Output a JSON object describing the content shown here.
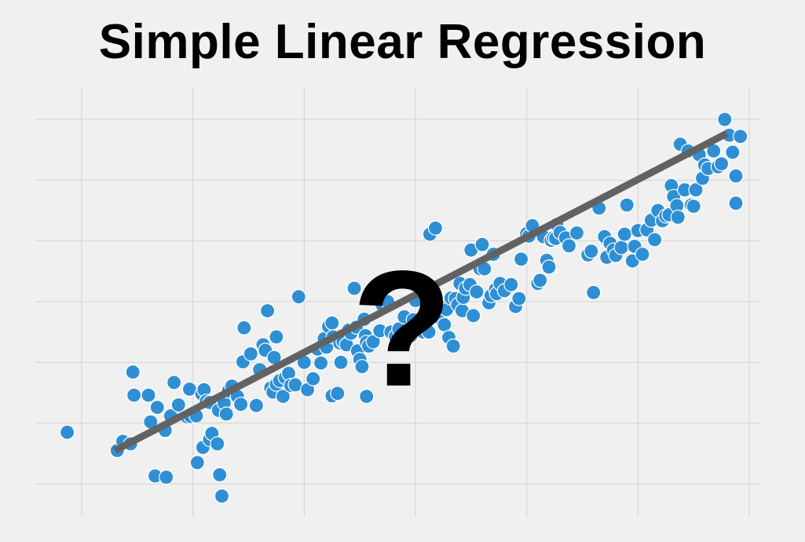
{
  "chart_data": {
    "type": "scatter",
    "title": "Simple Linear Regression",
    "xlabel": "",
    "ylabel": "",
    "xlim": [
      -0.4,
      5.95
    ],
    "ylim": [
      -0.25,
      6.4
    ],
    "grid": true,
    "tick_labels_shown": false,
    "x_gridlines": [
      0,
      1,
      2,
      3,
      4,
      5,
      6
    ],
    "y_gridlines": [
      0,
      1,
      2,
      3,
      4,
      5,
      6
    ],
    "colors": {
      "points": "#2e8fd4",
      "point_outline": "#ffffff",
      "regression_line": "#626262",
      "grid": "#d2d2d2",
      "background": "#f0f0f0",
      "annotation": "#000000"
    },
    "regression_line": {
      "start": [
        0.3,
        0.55
      ],
      "end": [
        5.8,
        5.77
      ]
    },
    "annotation": {
      "text": "?",
      "x": 2.88,
      "y": 2.55
    },
    "points": [
      [
        -0.13,
        0.85
      ],
      [
        0.32,
        0.55
      ],
      [
        0.37,
        0.7
      ],
      [
        0.44,
        0.66
      ],
      [
        0.46,
        1.84
      ],
      [
        0.47,
        1.46
      ],
      [
        0.6,
        1.46
      ],
      [
        0.62,
        1.02
      ],
      [
        0.66,
        0.13
      ],
      [
        0.68,
        1.26
      ],
      [
        0.75,
        0.88
      ],
      [
        0.76,
        0.11
      ],
      [
        0.8,
        1.12
      ],
      [
        0.83,
        1.67
      ],
      [
        0.87,
        1.3
      ],
      [
        0.95,
        1.1
      ],
      [
        0.97,
        1.56
      ],
      [
        0.98,
        1.11
      ],
      [
        1.03,
        1.12
      ],
      [
        1.04,
        0.35
      ],
      [
        1.08,
        1.48
      ],
      [
        1.09,
        0.6
      ],
      [
        1.1,
        1.55
      ],
      [
        1.12,
        1.36
      ],
      [
        1.15,
        1.34
      ],
      [
        1.15,
        0.73
      ],
      [
        1.17,
        0.83
      ],
      [
        1.22,
        0.66
      ],
      [
        1.23,
        1.21
      ],
      [
        1.24,
        0.15
      ],
      [
        1.26,
        -0.2
      ],
      [
        1.28,
        1.33
      ],
      [
        1.3,
        1.15
      ],
      [
        1.32,
        1.53
      ],
      [
        1.35,
        1.61
      ],
      [
        1.4,
        1.44
      ],
      [
        1.43,
        1.31
      ],
      [
        1.45,
        2.01
      ],
      [
        1.46,
        2.57
      ],
      [
        1.52,
        2.14
      ],
      [
        1.57,
        1.29
      ],
      [
        1.6,
        1.88
      ],
      [
        1.63,
        2.29
      ],
      [
        1.65,
        2.2
      ],
      [
        1.67,
        2.85
      ],
      [
        1.7,
        1.58
      ],
      [
        1.72,
        1.51
      ],
      [
        1.73,
        2.08
      ],
      [
        1.75,
        1.64
      ],
      [
        1.75,
        2.42
      ],
      [
        1.78,
        1.7
      ],
      [
        1.81,
        1.44
      ],
      [
        1.83,
        1.75
      ],
      [
        1.86,
        1.82
      ],
      [
        1.88,
        1.62
      ],
      [
        1.92,
        1.63
      ],
      [
        1.95,
        3.08
      ],
      [
        2.0,
        2.0
      ],
      [
        2.03,
        1.55
      ],
      [
        2.08,
        1.73
      ],
      [
        2.12,
        2.22
      ],
      [
        2.15,
        1.99
      ],
      [
        2.18,
        2.39
      ],
      [
        2.2,
        2.25
      ],
      [
        2.22,
        2.59
      ],
      [
        2.25,
        2.65
      ],
      [
        2.25,
        1.45
      ],
      [
        2.26,
        2.42
      ],
      [
        2.3,
        1.49
      ],
      [
        2.32,
        2.32
      ],
      [
        2.33,
        2.0
      ],
      [
        2.35,
        2.34
      ],
      [
        2.38,
        2.29
      ],
      [
        2.4,
        2.53
      ],
      [
        2.42,
        2.48
      ],
      [
        2.45,
        3.22
      ],
      [
        2.47,
        2.58
      ],
      [
        2.48,
        2.19
      ],
      [
        2.5,
        2.05
      ],
      [
        2.52,
        1.93
      ],
      [
        2.54,
        2.71
      ],
      [
        2.55,
        2.44
      ],
      [
        2.56,
        2.33
      ],
      [
        2.56,
        1.44
      ],
      [
        2.58,
        2.27
      ],
      [
        2.62,
        2.34
      ],
      [
        2.68,
        2.52
      ],
      [
        2.7,
        2.95
      ],
      [
        2.75,
        3.0
      ],
      [
        2.78,
        2.5
      ],
      [
        2.82,
        2.43
      ],
      [
        2.85,
        2.55
      ],
      [
        2.9,
        2.75
      ],
      [
        2.96,
        2.44
      ],
      [
        2.98,
        2.7
      ],
      [
        3.0,
        3.02
      ],
      [
        3.05,
        2.66
      ],
      [
        3.07,
        2.5
      ],
      [
        3.12,
        2.5
      ],
      [
        3.13,
        4.11
      ],
      [
        3.18,
        4.21
      ],
      [
        3.2,
        2.75
      ],
      [
        3.24,
        2.9
      ],
      [
        3.26,
        2.62
      ],
      [
        3.28,
        2.87
      ],
      [
        3.3,
        2.41
      ],
      [
        3.32,
        3.06
      ],
      [
        3.34,
        2.27
      ],
      [
        3.36,
        3.05
      ],
      [
        3.38,
        2.95
      ],
      [
        3.4,
        3.3
      ],
      [
        3.42,
        2.85
      ],
      [
        3.43,
        3.07
      ],
      [
        3.45,
        3.22
      ],
      [
        3.49,
        3.28
      ],
      [
        3.5,
        3.85
      ],
      [
        3.52,
        2.77
      ],
      [
        3.55,
        3.16
      ],
      [
        3.58,
        3.54
      ],
      [
        3.6,
        3.94
      ],
      [
        3.62,
        3.54
      ],
      [
        3.66,
        2.98
      ],
      [
        3.68,
        3.1
      ],
      [
        3.7,
        3.78
      ],
      [
        3.72,
        3.2
      ],
      [
        3.73,
        3.13
      ],
      [
        3.76,
        3.3
      ],
      [
        3.8,
        3.18
      ],
      [
        3.86,
        3.28
      ],
      [
        3.9,
        2.92
      ],
      [
        3.93,
        3.05
      ],
      [
        3.95,
        3.7
      ],
      [
        4.0,
        4.12
      ],
      [
        4.02,
        4.08
      ],
      [
        4.05,
        4.25
      ],
      [
        4.1,
        3.3
      ],
      [
        4.12,
        3.35
      ],
      [
        4.15,
        4.07
      ],
      [
        4.18,
        3.68
      ],
      [
        4.2,
        3.57
      ],
      [
        4.22,
        4.01
      ],
      [
        4.24,
        4.05
      ],
      [
        4.26,
        4.04
      ],
      [
        4.27,
        4.27
      ],
      [
        4.3,
        4.14
      ],
      [
        4.35,
        4.05
      ],
      [
        4.38,
        3.92
      ],
      [
        4.45,
        4.13
      ],
      [
        4.55,
        3.77
      ],
      [
        4.58,
        3.83
      ],
      [
        4.6,
        3.15
      ],
      [
        4.65,
        4.54
      ],
      [
        4.7,
        4.07
      ],
      [
        4.72,
        3.73
      ],
      [
        4.75,
        3.96
      ],
      [
        4.78,
        3.85
      ],
      [
        4.8,
        3.76
      ],
      [
        4.85,
        3.89
      ],
      [
        4.88,
        4.11
      ],
      [
        4.9,
        4.59
      ],
      [
        4.95,
        3.67
      ],
      [
        4.97,
        3.91
      ],
      [
        5.0,
        4.17
      ],
      [
        5.04,
        3.78
      ],
      [
        5.08,
        4.18
      ],
      [
        5.12,
        4.34
      ],
      [
        5.15,
        4.02
      ],
      [
        5.18,
        4.5
      ],
      [
        5.22,
        4.33
      ],
      [
        5.25,
        4.41
      ],
      [
        5.28,
        4.43
      ],
      [
        5.3,
        4.91
      ],
      [
        5.32,
        4.73
      ],
      [
        5.35,
        4.58
      ],
      [
        5.36,
        4.39
      ],
      [
        5.38,
        5.59
      ],
      [
        5.42,
        4.84
      ],
      [
        5.45,
        5.48
      ],
      [
        5.48,
        4.59
      ],
      [
        5.5,
        4.57
      ],
      [
        5.52,
        4.84
      ],
      [
        5.55,
        5.42
      ],
      [
        5.58,
        5.03
      ],
      [
        5.6,
        5.25
      ],
      [
        5.63,
        5.19
      ],
      [
        5.68,
        5.48
      ],
      [
        5.72,
        5.22
      ],
      [
        5.75,
        5.27
      ],
      [
        5.78,
        6.0
      ],
      [
        5.82,
        5.74
      ],
      [
        5.85,
        5.46
      ],
      [
        5.88,
        4.62
      ],
      [
        5.88,
        5.07
      ],
      [
        5.92,
        5.72
      ]
    ]
  }
}
